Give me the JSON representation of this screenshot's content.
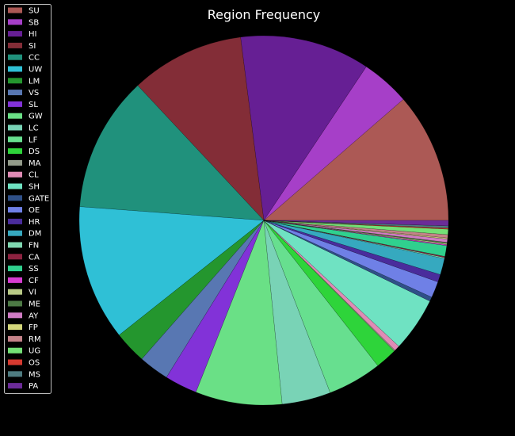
{
  "chart_data": {
    "type": "pie",
    "title": "Region Frequency",
    "legend_position": "left",
    "start_angle_deg": 0,
    "direction": "counterclockwise",
    "slices": [
      {
        "label": "SU",
        "value": 12.0,
        "color": "#ac5955"
      },
      {
        "label": "SB",
        "value": 4.5,
        "color": "#a63fc8"
      },
      {
        "label": "HI",
        "value": 12.0,
        "color": "#661f94"
      },
      {
        "label": "SI",
        "value": 10.5,
        "color": "#832d37"
      },
      {
        "label": "CC",
        "value": 12.5,
        "color": "#20917c"
      },
      {
        "label": "UW",
        "value": 12.5,
        "color": "#2fc0d6"
      },
      {
        "label": "LM",
        "value": 3.0,
        "color": "#24962e"
      },
      {
        "label": "VS",
        "value": 2.8,
        "color": "#5877b2"
      },
      {
        "label": "SL",
        "value": 3.0,
        "color": "#8232d8"
      },
      {
        "label": "GW",
        "value": 8.0,
        "color": "#6ae086"
      },
      {
        "label": "LC",
        "value": 4.5,
        "color": "#79d3b6"
      },
      {
        "label": "LF",
        "value": 5.0,
        "color": "#67df8f"
      },
      {
        "label": "DS",
        "value": 2.0,
        "color": "#2ed43a"
      },
      {
        "label": "MA",
        "value": 0.1,
        "color": "#939b8a"
      },
      {
        "label": "CL",
        "value": 0.5,
        "color": "#e08bb5"
      },
      {
        "label": "SH",
        "value": 5.0,
        "color": "#6fe2c2"
      },
      {
        "label": "GATE",
        "value": 0.4,
        "color": "#2f5088"
      },
      {
        "label": "OE",
        "value": 1.5,
        "color": "#6f80e6"
      },
      {
        "label": "HR",
        "value": 0.7,
        "color": "#4a2c9c"
      },
      {
        "label": "DM",
        "value": 1.5,
        "color": "#36a9bf"
      },
      {
        "label": "FN",
        "value": 0.1,
        "color": "#7fd6b0"
      },
      {
        "label": "CA",
        "value": 0.1,
        "color": "#8c2240"
      },
      {
        "label": "SS",
        "value": 1.0,
        "color": "#30d08e"
      },
      {
        "label": "CF",
        "value": 0.1,
        "color": "#d63cd0"
      },
      {
        "label": "VI",
        "value": 0.1,
        "color": "#b8c985"
      },
      {
        "label": "ME",
        "value": 0.1,
        "color": "#4d7a45"
      },
      {
        "label": "AY",
        "value": 0.3,
        "color": "#d07cc4"
      },
      {
        "label": "FP",
        "value": 0.1,
        "color": "#d3d67a"
      },
      {
        "label": "RM",
        "value": 0.3,
        "color": "#c48289"
      },
      {
        "label": "UG",
        "value": 0.5,
        "color": "#74e076"
      },
      {
        "label": "OS",
        "value": 0.1,
        "color": "#d63a30"
      },
      {
        "label": "MS",
        "value": 0.2,
        "color": "#4e7b80"
      },
      {
        "label": "PA",
        "value": 0.5,
        "color": "#6b2b98"
      }
    ]
  }
}
